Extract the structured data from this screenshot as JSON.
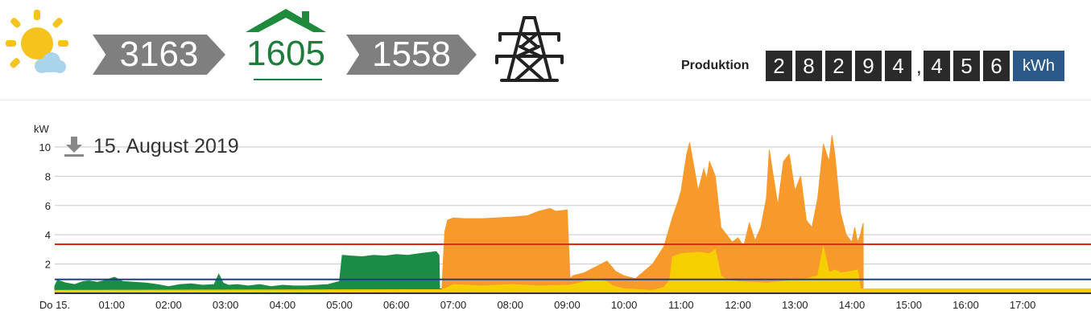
{
  "flow": {
    "production_value": "3163",
    "house_value": "1605",
    "grid_value": "1558"
  },
  "icons": {
    "weather": "sun-cloud-icon",
    "house": "house-roof-icon",
    "grid": "power-pylon-icon",
    "download": "download-icon"
  },
  "counter": {
    "label": "Produktion",
    "digits_int": [
      "2",
      "8",
      "2",
      "9",
      "4"
    ],
    "separator": ",",
    "digits_dec": [
      "4",
      "5",
      "6"
    ],
    "unit": "kWh"
  },
  "chart_data": {
    "type": "area",
    "title": "15. August 2019",
    "ylabel": "kW",
    "ylim": [
      0,
      10.6
    ],
    "yticks": [
      "10",
      "8",
      "6",
      "4",
      "2"
    ],
    "ytick_values": [
      10,
      8,
      6,
      4,
      2
    ],
    "xlim": [
      0,
      18.2
    ],
    "xticks": [
      "Do 15.",
      "01:00",
      "02:00",
      "03:00",
      "04:00",
      "05:00",
      "06:00",
      "07:00",
      "08:00",
      "09:00",
      "10:00",
      "11:00",
      "12:00",
      "13:00",
      "14:00",
      "15:00",
      "16:00",
      "17:00"
    ],
    "xtick_values": [
      0,
      1,
      2,
      3,
      4,
      5,
      6,
      7,
      8,
      9,
      10,
      11,
      12,
      13,
      14,
      15,
      16,
      17
    ],
    "grid": true,
    "series": [
      {
        "color": "#1a8c45",
        "x": [
          0,
          0.05,
          0.2,
          0.35,
          0.5,
          0.6,
          0.75,
          0.9,
          1.05,
          1.2,
          1.4,
          1.6,
          1.8,
          2.0,
          2.2,
          2.4,
          2.6,
          2.8,
          2.88,
          2.96,
          3.05,
          3.2,
          3.4,
          3.6,
          3.8,
          4.0,
          4.2,
          4.4,
          4.6,
          4.8,
          5.0,
          5.05,
          5.2,
          5.4,
          5.6,
          5.8,
          6.0,
          6.2,
          6.4,
          6.6,
          6.7,
          6.75,
          6.76,
          8.9,
          8.95,
          9.5,
          10.0,
          10.5,
          11.0,
          12.0,
          13.0,
          14.0,
          14.1,
          18.2
        ],
        "values": [
          0.5,
          0.9,
          0.7,
          0.6,
          0.8,
          0.85,
          0.75,
          0.9,
          1.1,
          0.8,
          0.75,
          0.7,
          0.6,
          0.45,
          0.6,
          0.65,
          0.55,
          0.6,
          1.3,
          0.7,
          0.55,
          0.6,
          0.5,
          0.6,
          0.45,
          0.55,
          0.5,
          0.5,
          0.55,
          0.6,
          0.8,
          2.6,
          2.55,
          2.5,
          2.6,
          2.55,
          2.65,
          2.6,
          2.7,
          2.8,
          2.85,
          2.6,
          0.3,
          0.3,
          0.3,
          0.3,
          0.3,
          0.3,
          0.3,
          0.3,
          0.3,
          0.3,
          0.2,
          0.2
        ]
      },
      {
        "color": "#f89a2b",
        "x": [
          6.8,
          6.85,
          6.9,
          7.0,
          7.2,
          7.5,
          8.0,
          8.3,
          8.5,
          8.7,
          8.8,
          9.0,
          9.05,
          9.1,
          9.3,
          9.5,
          9.7,
          9.85,
          10.0,
          10.2,
          10.5,
          10.7,
          10.85,
          10.95,
          11.0,
          11.1,
          11.15,
          11.2,
          11.3,
          11.4,
          11.45,
          11.5,
          11.6,
          11.7,
          11.8,
          11.9,
          12.0,
          12.1,
          12.2,
          12.3,
          12.4,
          12.5,
          12.55,
          12.6,
          12.7,
          12.8,
          12.9,
          13.0,
          13.1,
          13.2,
          13.3,
          13.4,
          13.5,
          13.6,
          13.65,
          13.7,
          13.8,
          13.9,
          14.0,
          14.05,
          14.1,
          14.15,
          14.2
        ],
        "values": [
          0.4,
          4.2,
          5.0,
          5.15,
          5.1,
          5.1,
          5.2,
          5.3,
          5.6,
          5.8,
          5.6,
          5.7,
          1.0,
          1.2,
          1.4,
          1.8,
          2.2,
          1.5,
          1.2,
          1.0,
          2.0,
          3.2,
          5.2,
          6.3,
          7.0,
          9.5,
          10.3,
          9.2,
          7.0,
          8.5,
          7.8,
          9.0,
          8.0,
          4.5,
          4.0,
          3.5,
          3.8,
          3.2,
          4.8,
          3.6,
          4.5,
          6.5,
          9.8,
          8.5,
          6.0,
          9.0,
          9.5,
          7.0,
          8.0,
          5.0,
          4.5,
          6.5,
          10.2,
          9.0,
          10.8,
          9.5,
          5.5,
          4.0,
          3.5,
          4.5,
          3.5,
          4.0,
          4.8
        ]
      },
      {
        "color": "#f6cf00",
        "x": [
          0,
          6.8,
          6.9,
          7.0,
          7.5,
          8.0,
          8.5,
          9.0,
          9.1,
          9.5,
          9.7,
          9.8,
          10.0,
          10.5,
          10.7,
          10.8,
          10.85,
          11.0,
          11.3,
          11.5,
          11.6,
          11.7,
          11.8,
          12.0,
          12.5,
          13.0,
          13.2,
          13.4,
          13.5,
          13.6,
          13.7,
          13.8,
          14.0,
          14.1,
          14.15,
          18.2
        ],
        "values": [
          0.2,
          0.25,
          0.4,
          0.6,
          0.5,
          0.6,
          0.5,
          0.55,
          0.6,
          1.0,
          0.8,
          0.5,
          0.3,
          0.2,
          0.4,
          0.9,
          2.5,
          2.7,
          2.8,
          2.7,
          3.0,
          1.2,
          0.9,
          0.8,
          0.7,
          0.9,
          1.0,
          1.2,
          3.2,
          1.4,
          1.6,
          1.4,
          1.5,
          1.6,
          0.3,
          0.3
        ]
      }
    ],
    "reference_lines": [
      {
        "value": 3.35,
        "color": "#e02810"
      },
      {
        "value": 0.95,
        "color": "#1f3f8f"
      }
    ]
  }
}
